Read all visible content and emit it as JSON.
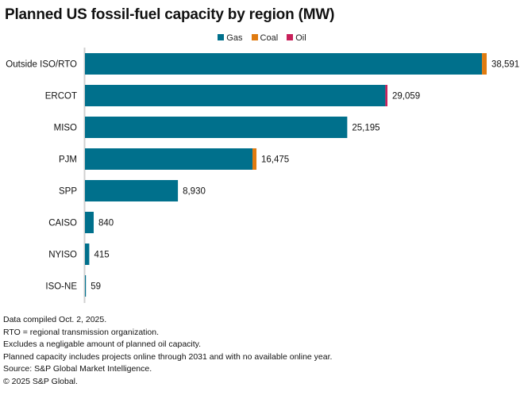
{
  "chart_data": {
    "type": "bar",
    "orientation": "horizontal",
    "stacked": true,
    "title": "Planned US fossil-fuel capacity by region (MW)",
    "xlabel": "",
    "ylabel": "",
    "xlim": [
      0,
      38591
    ],
    "grid": false,
    "legend_position": "top-center",
    "categories": [
      "Outside ISO/RTO",
      "ERCOT",
      "MISO",
      "PJM",
      "SPP",
      "CAISO",
      "NYISO",
      "ISO-NE"
    ],
    "series": [
      {
        "name": "Gas",
        "color": "#00708c",
        "values": [
          38141,
          28859,
          25195,
          16095,
          8930,
          840,
          415,
          59
        ]
      },
      {
        "name": "Coal",
        "color": "#e07b10",
        "values": [
          450,
          0,
          0,
          380,
          0,
          0,
          0,
          0
        ]
      },
      {
        "name": "Oil",
        "color": "#c8205a",
        "values": [
          0,
          200,
          0,
          0,
          0,
          0,
          0,
          0
        ]
      }
    ],
    "totals": [
      38591,
      29059,
      25195,
      16475,
      8930,
      840,
      415,
      59
    ],
    "total_labels": [
      "38,591",
      "29,059",
      "25,195",
      "16,475",
      "8,930",
      "840",
      "415",
      "59"
    ]
  },
  "footnotes": [
    "Data compiled Oct. 2, 2025.",
    "RTO = regional transmission organization.",
    "Excludes a negligable amount of planned oil capacity.",
    "Planned capacity includes projects online through 2031 and with no available online year.",
    "Source: S&P Global Market Intelligence.",
    "© 2025 S&P Global."
  ]
}
